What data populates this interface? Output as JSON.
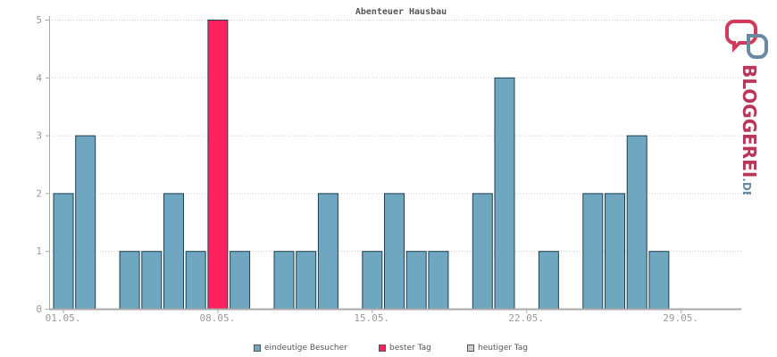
{
  "chart_data": {
    "type": "bar",
    "title": "Abenteuer Hausbau",
    "ylim": [
      0,
      5
    ],
    "yticks": [
      "0",
      "1",
      "2",
      "3",
      "4",
      "5"
    ],
    "days": [
      1,
      2,
      3,
      4,
      5,
      6,
      7,
      8,
      9,
      10,
      11,
      12,
      13,
      14,
      15,
      16,
      17,
      18,
      19,
      20,
      21,
      22,
      23,
      24,
      25,
      26,
      27,
      28,
      29,
      30,
      31
    ],
    "values": [
      2,
      3,
      0,
      1,
      1,
      2,
      1,
      5,
      1,
      0,
      1,
      1,
      2,
      0,
      1,
      2,
      1,
      1,
      0,
      2,
      4,
      0,
      1,
      0,
      2,
      2,
      3,
      1,
      0,
      0,
      0
    ],
    "highlight_index": 7,
    "xticks": [
      {
        "day": 1,
        "label": "01.05."
      },
      {
        "day": 8,
        "label": "08.05."
      },
      {
        "day": 15,
        "label": "15.05."
      },
      {
        "day": 22,
        "label": "22.05."
      },
      {
        "day": 29,
        "label": "29.05."
      }
    ],
    "grid": true,
    "legend_position": "bottom",
    "legend": [
      {
        "label": "eindeutige Besucher",
        "color": "#6fa6c0"
      },
      {
        "label": "bester Tag",
        "color": "#ff2060"
      },
      {
        "label": "heutiger Tag",
        "color": "#cccccc"
      }
    ]
  },
  "colors": {
    "bar": "#6fa6c0",
    "best": "#ff2060",
    "today": "#cccccc",
    "outline": "#1f4050",
    "grid": "#cccccc",
    "axis": "#aaaaaa"
  },
  "brand": {
    "text": "BLOGGEREI.DE",
    "icon": "two-linked-speech-bubbles-icon"
  }
}
